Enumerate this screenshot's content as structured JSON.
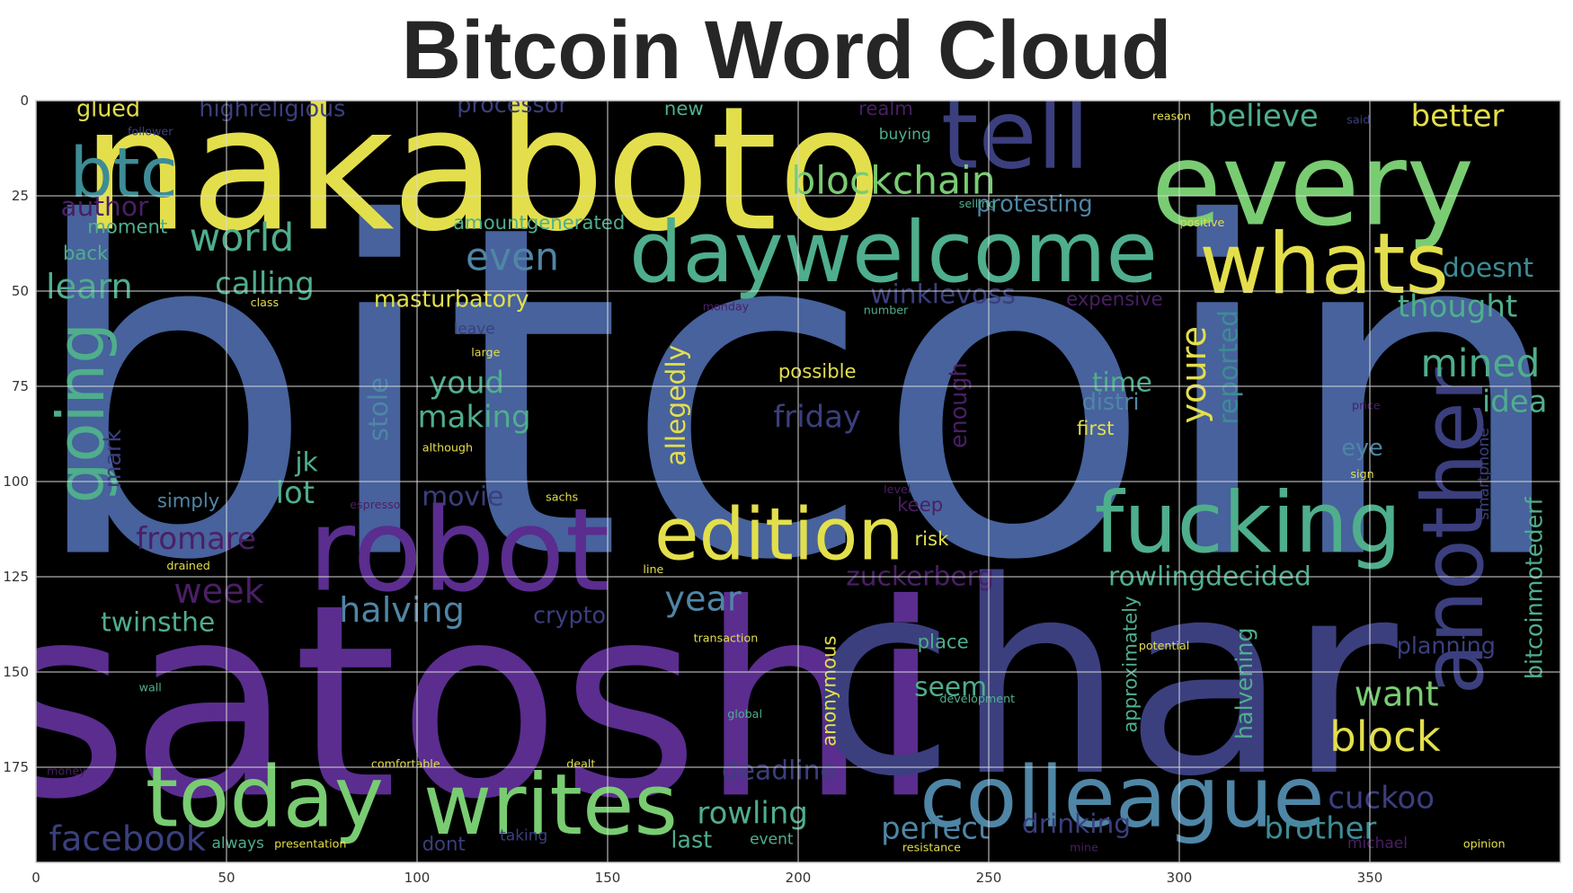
{
  "chart_data": {
    "type": "wordcloud",
    "title": "Bitcoin Word Cloud",
    "xlim": [
      0,
      400
    ],
    "ylim": [
      200,
      0
    ],
    "xticks": [
      0,
      50,
      100,
      150,
      200,
      250,
      300,
      350
    ],
    "yticks": [
      0,
      25,
      50,
      75,
      100,
      125,
      150,
      175
    ],
    "grid": true,
    "background": "#000000",
    "grid_color": "#d9d9d9",
    "palette": {
      "blue": "#47629c",
      "purple": "#5a2d8f",
      "yellow": "#e3df4c",
      "green": "#79cc72",
      "teal": "#3d8c95",
      "sea": "#4fae8c",
      "steel": "#4f86a6",
      "indigo": "#3b3f7e",
      "violet": "#4a1f66"
    },
    "words": [
      {
        "text": "bitcoin",
        "x": 200,
        "y": 77,
        "size": 120,
        "color": "blue"
      },
      {
        "text": "satoshi",
        "x": 113,
        "y": 158,
        "size": 70,
        "color": "purple"
      },
      {
        "text": "char",
        "x": 280,
        "y": 152,
        "size": 70,
        "color": "indigo"
      },
      {
        "text": "nakaboto",
        "x": 117,
        "y": 18,
        "size": 45,
        "color": "yellow"
      },
      {
        "text": "robot",
        "x": 111,
        "y": 118,
        "size": 30,
        "color": "purple"
      },
      {
        "text": "every",
        "x": 335,
        "y": 22,
        "size": 30,
        "color": "green"
      },
      {
        "text": "tell",
        "x": 257,
        "y": 9,
        "size": 25,
        "color": "indigo"
      },
      {
        "text": "daywelcome",
        "x": 225,
        "y": 40,
        "size": 22,
        "color": "sea"
      },
      {
        "text": "whats",
        "x": 338,
        "y": 43,
        "size": 22,
        "color": "yellow"
      },
      {
        "text": "fucking",
        "x": 318,
        "y": 111,
        "size": 22,
        "color": "sea"
      },
      {
        "text": "edition",
        "x": 195,
        "y": 114,
        "size": 19,
        "color": "yellow"
      },
      {
        "text": "colleague",
        "x": 285,
        "y": 183,
        "size": 22,
        "color": "steel"
      },
      {
        "text": "writes",
        "x": 135,
        "y": 185,
        "size": 22,
        "color": "green"
      },
      {
        "text": "today",
        "x": 60,
        "y": 183,
        "size": 22,
        "color": "green"
      },
      {
        "text": "another",
        "x": 372,
        "y": 113,
        "size": 22,
        "color": "indigo",
        "rotate": true
      },
      {
        "text": "btc",
        "x": 23,
        "y": 19,
        "size": 18,
        "color": "teal"
      },
      {
        "text": "going",
        "x": 12,
        "y": 82,
        "size": 17,
        "color": "sea",
        "rotate": true
      },
      {
        "text": "blockchain",
        "x": 225,
        "y": 21,
        "size": 10,
        "color": "green"
      },
      {
        "text": "world",
        "x": 54,
        "y": 36,
        "size": 10,
        "color": "sea"
      },
      {
        "text": "even",
        "x": 125,
        "y": 41,
        "size": 10,
        "color": "steel"
      },
      {
        "text": "believe",
        "x": 322,
        "y": 4,
        "size": 8,
        "color": "sea"
      },
      {
        "text": "better",
        "x": 373,
        "y": 4,
        "size": 8,
        "color": "yellow"
      },
      {
        "text": "glued",
        "x": 19,
        "y": 2,
        "size": 6,
        "color": "yellow"
      },
      {
        "text": "highreligious",
        "x": 62,
        "y": 2,
        "size": 6,
        "color": "indigo"
      },
      {
        "text": "processor",
        "x": 125,
        "y": 1,
        "size": 6,
        "color": "indigo"
      },
      {
        "text": "new",
        "x": 170,
        "y": 2,
        "size": 5,
        "color": "sea"
      },
      {
        "text": "realm",
        "x": 223,
        "y": 2,
        "size": 5,
        "color": "violet"
      },
      {
        "text": "buying",
        "x": 228,
        "y": 9,
        "size": 4,
        "color": "sea"
      },
      {
        "text": "author",
        "x": 18,
        "y": 28,
        "size": 7,
        "color": "violet"
      },
      {
        "text": "moment",
        "x": 24,
        "y": 33,
        "size": 5,
        "color": "sea"
      },
      {
        "text": "amountgenerated",
        "x": 132,
        "y": 32,
        "size": 5,
        "color": "sea"
      },
      {
        "text": "protesting",
        "x": 262,
        "y": 27,
        "size": 6,
        "color": "steel"
      },
      {
        "text": "back",
        "x": 13,
        "y": 40,
        "size": 5,
        "color": "sea"
      },
      {
        "text": "learn",
        "x": 14,
        "y": 49,
        "size": 9,
        "color": "sea"
      },
      {
        "text": "calling",
        "x": 60,
        "y": 48,
        "size": 8,
        "color": "sea"
      },
      {
        "text": "masturbatory",
        "x": 109,
        "y": 52,
        "size": 6,
        "color": "yellow"
      },
      {
        "text": "winklevoss",
        "x": 238,
        "y": 51,
        "size": 7,
        "color": "indigo"
      },
      {
        "text": "expensive",
        "x": 283,
        "y": 52,
        "size": 5,
        "color": "violet"
      },
      {
        "text": "doesnt",
        "x": 381,
        "y": 44,
        "size": 7,
        "color": "teal"
      },
      {
        "text": "thought",
        "x": 373,
        "y": 54,
        "size": 8,
        "color": "sea"
      },
      {
        "text": "mined",
        "x": 379,
        "y": 69,
        "size": 10,
        "color": "sea"
      },
      {
        "text": "idea",
        "x": 388,
        "y": 79,
        "size": 8,
        "color": "sea"
      },
      {
        "text": "youd",
        "x": 113,
        "y": 74,
        "size": 8,
        "color": "sea"
      },
      {
        "text": "making",
        "x": 115,
        "y": 83,
        "size": 8,
        "color": "sea"
      },
      {
        "text": "allegedly",
        "x": 168,
        "y": 80,
        "size": 7,
        "color": "yellow",
        "rotate": true
      },
      {
        "text": "possible",
        "x": 205,
        "y": 71,
        "size": 5,
        "color": "yellow"
      },
      {
        "text": "friday",
        "x": 205,
        "y": 83,
        "size": 8,
        "color": "indigo"
      },
      {
        "text": "stole",
        "x": 90,
        "y": 81,
        "size": 7,
        "color": "steel",
        "rotate": true
      },
      {
        "text": "enough",
        "x": 242,
        "y": 80,
        "size": 6,
        "color": "violet",
        "rotate": true
      },
      {
        "text": "time",
        "x": 285,
        "y": 74,
        "size": 7,
        "color": "sea"
      },
      {
        "text": "distri",
        "x": 282,
        "y": 79,
        "size": 6,
        "color": "steel"
      },
      {
        "text": "first",
        "x": 278,
        "y": 86,
        "size": 5,
        "color": "yellow"
      },
      {
        "text": "youre",
        "x": 304,
        "y": 72,
        "size": 9,
        "color": "yellow",
        "rotate": true
      },
      {
        "text": "reported",
        "x": 313,
        "y": 70,
        "size": 7,
        "color": "teal",
        "rotate": true
      },
      {
        "text": "eye",
        "x": 348,
        "y": 91,
        "size": 6,
        "color": "steel"
      },
      {
        "text": "jk",
        "x": 71,
        "y": 95,
        "size": 7,
        "color": "sea"
      },
      {
        "text": "lot",
        "x": 68,
        "y": 103,
        "size": 8,
        "color": "sea"
      },
      {
        "text": "simply",
        "x": 40,
        "y": 105,
        "size": 5,
        "color": "steel"
      },
      {
        "text": "mark",
        "x": 20,
        "y": 94,
        "size": 6,
        "color": "indigo",
        "rotate": true
      },
      {
        "text": "movie",
        "x": 112,
        "y": 104,
        "size": 7,
        "color": "indigo"
      },
      {
        "text": "keep",
        "x": 232,
        "y": 106,
        "size": 5,
        "color": "violet"
      },
      {
        "text": "risk",
        "x": 235,
        "y": 115,
        "size": 5,
        "color": "yellow"
      },
      {
        "text": "fromare",
        "x": 42,
        "y": 115,
        "size": 8,
        "color": "violet"
      },
      {
        "text": "week",
        "x": 48,
        "y": 129,
        "size": 9,
        "color": "violet"
      },
      {
        "text": "twinsthe",
        "x": 32,
        "y": 137,
        "size": 7,
        "color": "sea"
      },
      {
        "text": "halving",
        "x": 96,
        "y": 134,
        "size": 9,
        "color": "steel"
      },
      {
        "text": "crypto",
        "x": 140,
        "y": 135,
        "size": 6,
        "color": "indigo"
      },
      {
        "text": "year",
        "x": 175,
        "y": 131,
        "size": 9,
        "color": "steel"
      },
      {
        "text": "zuckerberg",
        "x": 232,
        "y": 125,
        "size": 7,
        "color": "violet"
      },
      {
        "text": "rowlingdecided",
        "x": 308,
        "y": 125,
        "size": 7,
        "color": "sea"
      },
      {
        "text": "bitcoinmotederf",
        "x": 393,
        "y": 128,
        "size": 6,
        "color": "sea",
        "rotate": true
      },
      {
        "text": "planning",
        "x": 370,
        "y": 143,
        "size": 6,
        "color": "indigo"
      },
      {
        "text": "place",
        "x": 238,
        "y": 142,
        "size": 5,
        "color": "sea"
      },
      {
        "text": "seem",
        "x": 240,
        "y": 154,
        "size": 7,
        "color": "sea"
      },
      {
        "text": "anonymous",
        "x": 208,
        "y": 155,
        "size": 5,
        "color": "yellow",
        "rotate": true
      },
      {
        "text": "approximately",
        "x": 287,
        "y": 148,
        "size": 5,
        "color": "sea",
        "rotate": true
      },
      {
        "text": "halvening",
        "x": 317,
        "y": 153,
        "size": 6,
        "color": "sea",
        "rotate": true
      },
      {
        "text": "want",
        "x": 357,
        "y": 156,
        "size": 9,
        "color": "green"
      },
      {
        "text": "block",
        "x": 354,
        "y": 167,
        "size": 11,
        "color": "yellow"
      },
      {
        "text": "deadline",
        "x": 195,
        "y": 176,
        "size": 7,
        "color": "indigo"
      },
      {
        "text": "rowling",
        "x": 188,
        "y": 187,
        "size": 8,
        "color": "sea"
      },
      {
        "text": "perfect",
        "x": 236,
        "y": 191,
        "size": 8,
        "color": "steel"
      },
      {
        "text": "drinking",
        "x": 273,
        "y": 190,
        "size": 7,
        "color": "indigo"
      },
      {
        "text": "cuckoo",
        "x": 353,
        "y": 183,
        "size": 8,
        "color": "indigo"
      },
      {
        "text": "brother",
        "x": 337,
        "y": 191,
        "size": 8,
        "color": "teal"
      },
      {
        "text": "facebook",
        "x": 24,
        "y": 194,
        "size": 9,
        "color": "indigo"
      },
      {
        "text": "last",
        "x": 172,
        "y": 194,
        "size": 6,
        "color": "sea"
      },
      {
        "text": "dont",
        "x": 107,
        "y": 195,
        "size": 5,
        "color": "indigo"
      },
      {
        "text": "event",
        "x": 193,
        "y": 194,
        "size": 4,
        "color": "sea"
      },
      {
        "text": "always",
        "x": 53,
        "y": 195,
        "size": 4,
        "color": "sea"
      },
      {
        "text": "presentation",
        "x": 72,
        "y": 195,
        "size": 3,
        "color": "yellow"
      },
      {
        "text": "taking",
        "x": 128,
        "y": 193,
        "size": 4,
        "color": "indigo"
      },
      {
        "text": "resistance",
        "x": 235,
        "y": 196,
        "size": 3,
        "color": "yellow"
      },
      {
        "text": "michael",
        "x": 352,
        "y": 195,
        "size": 4,
        "color": "violet"
      },
      {
        "text": "opinion",
        "x": 380,
        "y": 195,
        "size": 3,
        "color": "yellow"
      },
      {
        "text": "mine",
        "x": 275,
        "y": 196,
        "size": 3,
        "color": "violet"
      },
      {
        "text": "follower",
        "x": 30,
        "y": 8,
        "size": 3,
        "color": "indigo"
      },
      {
        "text": "reason",
        "x": 298,
        "y": 4,
        "size": 3,
        "color": "yellow"
      },
      {
        "text": "said",
        "x": 347,
        "y": 5,
        "size": 3,
        "color": "indigo"
      },
      {
        "text": "selling",
        "x": 247,
        "y": 27,
        "size": 3,
        "color": "sea"
      },
      {
        "text": "positive",
        "x": 306,
        "y": 32,
        "size": 3,
        "color": "yellow"
      },
      {
        "text": "leave",
        "x": 115,
        "y": 60,
        "size": 4,
        "color": "indigo"
      },
      {
        "text": "large",
        "x": 118,
        "y": 66,
        "size": 3,
        "color": "yellow"
      },
      {
        "text": "class",
        "x": 60,
        "y": 53,
        "size": 3,
        "color": "yellow"
      },
      {
        "text": "monday",
        "x": 181,
        "y": 54,
        "size": 3,
        "color": "violet"
      },
      {
        "text": "number",
        "x": 223,
        "y": 55,
        "size": 3,
        "color": "sea"
      },
      {
        "text": "although",
        "x": 108,
        "y": 91,
        "size": 3,
        "color": "yellow"
      },
      {
        "text": "level",
        "x": 226,
        "y": 102,
        "size": 3,
        "color": "violet"
      },
      {
        "text": "sachs",
        "x": 138,
        "y": 104,
        "size": 3,
        "color": "yellow"
      },
      {
        "text": "espresso",
        "x": 89,
        "y": 106,
        "size": 3,
        "color": "violet"
      },
      {
        "text": "drained",
        "x": 40,
        "y": 122,
        "size": 3,
        "color": "yellow"
      },
      {
        "text": "line",
        "x": 162,
        "y": 123,
        "size": 3,
        "color": "yellow"
      },
      {
        "text": "global",
        "x": 186,
        "y": 161,
        "size": 3,
        "color": "sea"
      },
      {
        "text": "development",
        "x": 247,
        "y": 157,
        "size": 3,
        "color": "sea"
      },
      {
        "text": "potential",
        "x": 296,
        "y": 143,
        "size": 3,
        "color": "yellow"
      },
      {
        "text": "comfortable",
        "x": 97,
        "y": 174,
        "size": 3,
        "color": "yellow"
      },
      {
        "text": "dealt",
        "x": 143,
        "y": 174,
        "size": 3,
        "color": "yellow"
      },
      {
        "text": "money",
        "x": 8,
        "y": 176,
        "size": 3,
        "color": "violet"
      },
      {
        "text": "transaction",
        "x": 181,
        "y": 141,
        "size": 3,
        "color": "yellow"
      },
      {
        "text": "wall",
        "x": 30,
        "y": 154,
        "size": 3,
        "color": "sea"
      },
      {
        "text": "sign",
        "x": 348,
        "y": 98,
        "size": 3,
        "color": "yellow"
      },
      {
        "text": "price",
        "x": 349,
        "y": 80,
        "size": 3,
        "color": "violet"
      },
      {
        "text": "smartphone",
        "x": 380,
        "y": 98,
        "size": 4,
        "color": "indigo",
        "rotate": true
      }
    ]
  }
}
